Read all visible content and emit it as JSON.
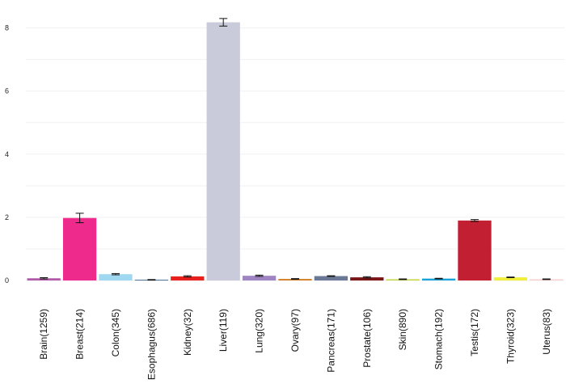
{
  "chart_data": {
    "type": "bar",
    "title": "",
    "xlabel": "",
    "ylabel": "",
    "ylim": [
      0,
      8.4
    ],
    "yticks": [
      0,
      2,
      4,
      6,
      8
    ],
    "grid": true,
    "categories": [
      "Brain(1259)",
      "Breast(214)",
      "Colon(345)",
      "Esophagus(686)",
      "Kidney(32)",
      "Liver(119)",
      "Lung(320)",
      "Ovary(97)",
      "Pancreas(171)",
      "Prostate(106)",
      "Skin(890)",
      "Stomach(192)",
      "Testis(172)",
      "Thyroid(323)",
      "Uterus(83)"
    ],
    "values": [
      0.07,
      1.98,
      0.2,
      0.02,
      0.13,
      8.18,
      0.15,
      0.05,
      0.14,
      0.1,
      0.04,
      0.06,
      1.9,
      0.1,
      0.04
    ],
    "errors": [
      0.02,
      0.15,
      0.02,
      0.01,
      0.02,
      0.12,
      0.02,
      0.01,
      0.01,
      0.02,
      0.01,
      0.01,
      0.03,
      0.01,
      0.01
    ],
    "colors": [
      "#b05aa8",
      "#ee2a8c",
      "#9fd8f0",
      "#1f4e79",
      "#e8201e",
      "#c9cbdb",
      "#9f86c2",
      "#d4822a",
      "#6b7896",
      "#7a1616",
      "#c6d84a",
      "#1aa2d9",
      "#c21f33",
      "#f2ee3c",
      "#f6d2d2"
    ]
  }
}
